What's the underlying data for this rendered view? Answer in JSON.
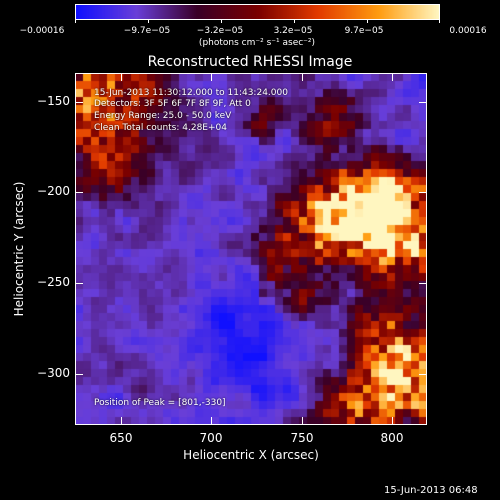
{
  "colorbar": {
    "labels": [
      "−0.00016",
      "−9.7e−05",
      "−3.2e−05",
      "3.2e−05",
      "9.7e−05",
      "0.00016"
    ],
    "units": "(photons cm⁻² s⁻¹ asec⁻²)",
    "colors": [
      "#1010ff",
      "#6a3fd8",
      "#3a0028",
      "#7a0000",
      "#e23a00",
      "#ff9c10",
      "#fff6c0"
    ]
  },
  "plot": {
    "title": "Reconstructed RHESSI Image",
    "annotations": {
      "time_range": "15-Jun-2013 11:30:12.000 to 11:43:24.000",
      "detectors": "Detectors: 3F 5F 6F 7F 8F 9F, Att 0",
      "energy": "Energy Range: 25.0 - 50.0 keV",
      "clean": "Clean     Total counts: 4.28E+04",
      "peak": "Position of Peak = [801,-330]"
    },
    "xlabel": "Heliocentric X (arcsec)",
    "ylabel": "Heliocentric Y (arcsec)",
    "xticks": [
      "650",
      "700",
      "750",
      "800"
    ],
    "yticks": [
      "−150",
      "−200",
      "−250",
      "−300"
    ],
    "xrange": [
      625,
      817
    ],
    "yrange": [
      -328,
      -135
    ]
  },
  "footer": {
    "timestamp": "15-Jun-2013 06:48"
  }
}
